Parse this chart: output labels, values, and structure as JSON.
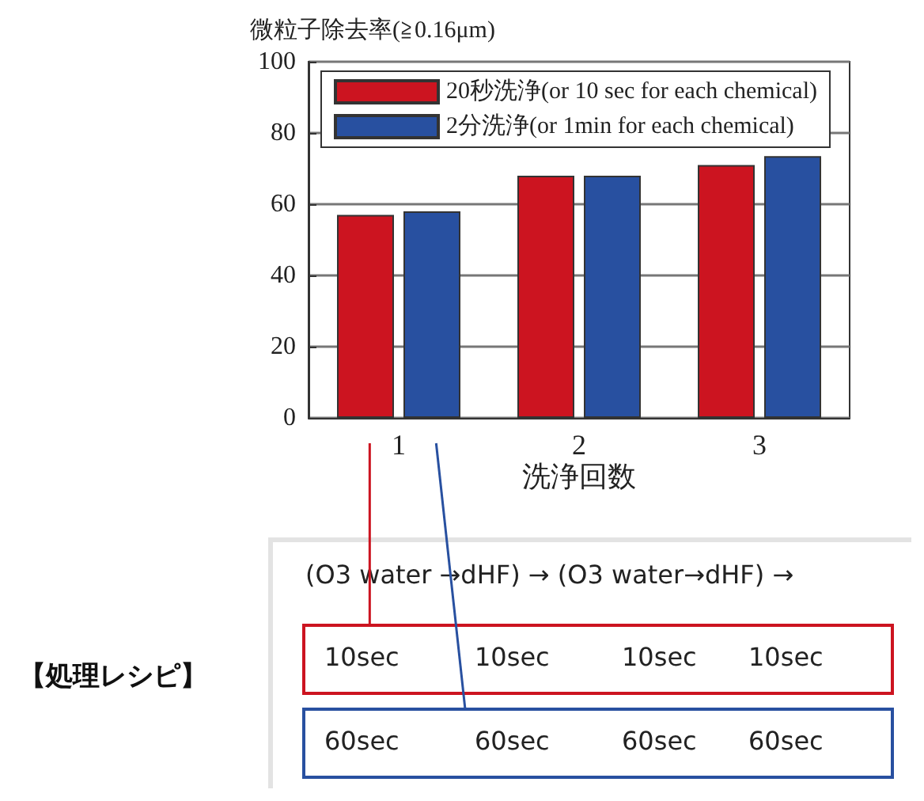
{
  "chart_data": {
    "type": "bar",
    "ylabel": "微粒子除去率(≧0.16μm)",
    "xlabel": "洗浄回数",
    "categories": [
      "1",
      "2",
      "3"
    ],
    "series": [
      {
        "name": "20秒洗浄(or 10 sec for each chemical)",
        "color": "#cc1420",
        "values": [
          57,
          68,
          71
        ]
      },
      {
        "name": "2分洗浄(or 1min for each chemical)",
        "color": "#2850a0",
        "values": [
          58,
          68,
          73.5
        ]
      }
    ],
    "ylim": [
      0,
      100
    ],
    "yticks": [
      0,
      20,
      40,
      60,
      80,
      100
    ],
    "grid": "y",
    "legend": "top",
    "annotations": [
      "【処理レシピ】",
      "(O3 water →dHF) → (O3 water→dHF) →",
      "10sec",
      "10sec",
      "10sec",
      "10sec",
      "60sec",
      "60sec",
      "60sec",
      "60sec"
    ]
  }
}
